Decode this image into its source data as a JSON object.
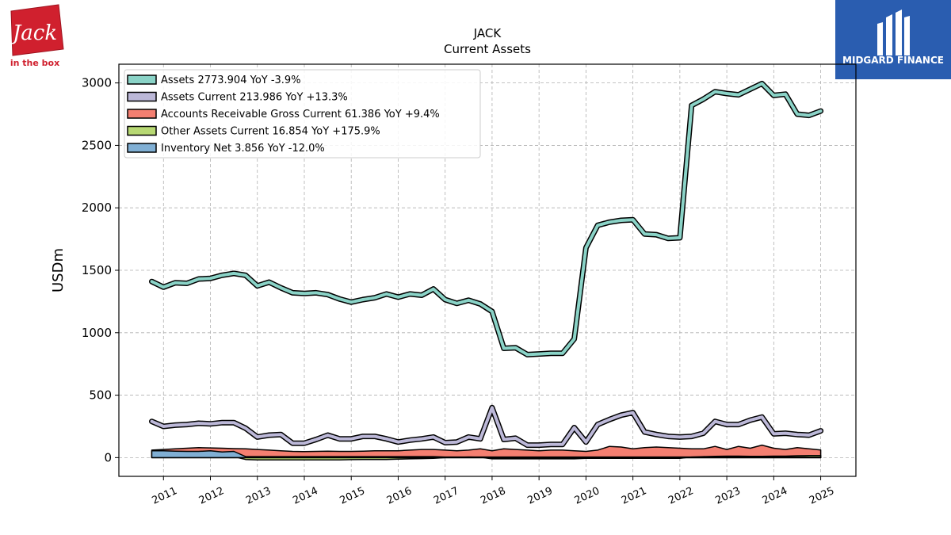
{
  "logo_left": {
    "brand": "Jack",
    "tagline": "in the box",
    "color": "#d0202e"
  },
  "logo_right": {
    "name": "MIDGARD FINANCE",
    "color": "#2a5db0"
  },
  "chart_data": {
    "type": "line",
    "title": "JACK",
    "subtitle": "Current  Assets",
    "ylabel": "USDm",
    "xlabel": "",
    "ylim": [
      -150,
      3150
    ],
    "xlim": [
      2010.05,
      2025.75
    ],
    "grid": true,
    "legend_position": "top-left",
    "yticks": [
      0,
      500,
      1000,
      1500,
      2000,
      2500,
      3000
    ],
    "xticks": [
      2011,
      2012,
      2013,
      2014,
      2015,
      2016,
      2017,
      2018,
      2019,
      2020,
      2021,
      2022,
      2023,
      2024,
      2025
    ],
    "series": [
      {
        "name": "Assets",
        "legend": "Assets  2773.904 YoY -3.9%",
        "color": "#8ad3c7",
        "fill": false,
        "x": [
          2010.75,
          2011.0,
          2011.25,
          2011.5,
          2011.75,
          2012.0,
          2012.25,
          2012.5,
          2012.75,
          2013.0,
          2013.25,
          2013.5,
          2013.75,
          2014.0,
          2014.25,
          2014.5,
          2014.75,
          2015.0,
          2015.25,
          2015.5,
          2015.75,
          2016.0,
          2016.25,
          2016.5,
          2016.75,
          2017.0,
          2017.25,
          2017.5,
          2017.75,
          2018.0,
          2018.25,
          2018.5,
          2018.75,
          2019.0,
          2019.25,
          2019.5,
          2019.75,
          2020.0,
          2020.25,
          2020.5,
          2020.75,
          2021.0,
          2021.25,
          2021.5,
          2021.75,
          2022.0,
          2022.25,
          2022.5,
          2022.75,
          2023.0,
          2023.25,
          2023.5,
          2023.75,
          2024.0,
          2024.25,
          2024.5,
          2024.75,
          2025.0
        ],
        "y": [
          1410,
          1365,
          1400,
          1395,
          1430,
          1435,
          1460,
          1475,
          1460,
          1375,
          1405,
          1360,
          1320,
          1315,
          1320,
          1305,
          1270,
          1245,
          1265,
          1280,
          1310,
          1285,
          1310,
          1300,
          1350,
          1265,
          1235,
          1260,
          1230,
          1170,
          875,
          880,
          825,
          830,
          835,
          835,
          950,
          1680,
          1860,
          1885,
          1900,
          1905,
          1790,
          1785,
          1755,
          1760,
          2820,
          2870,
          2930,
          2915,
          2905,
          2950,
          2995,
          2900,
          2910,
          2750,
          2740,
          2775
        ]
      },
      {
        "name": "Assets Current",
        "legend": "Assets Current  213.986 YoY +13.3%",
        "color": "#bcb8d8",
        "fill": false,
        "x": [
          2010.75,
          2011.0,
          2011.25,
          2011.5,
          2011.75,
          2012.0,
          2012.25,
          2012.5,
          2012.75,
          2013.0,
          2013.25,
          2013.5,
          2013.75,
          2014.0,
          2014.25,
          2014.5,
          2014.75,
          2015.0,
          2015.25,
          2015.5,
          2015.75,
          2016.0,
          2016.25,
          2016.5,
          2016.75,
          2017.0,
          2017.25,
          2017.5,
          2017.75,
          2018.0,
          2018.25,
          2018.5,
          2018.75,
          2019.0,
          2019.25,
          2019.5,
          2019.75,
          2020.0,
          2020.25,
          2020.5,
          2020.75,
          2021.0,
          2021.25,
          2021.5,
          2021.75,
          2022.0,
          2022.25,
          2022.5,
          2022.75,
          2023.0,
          2023.25,
          2023.5,
          2023.75,
          2024.0,
          2024.25,
          2024.5,
          2024.75,
          2025.0
        ],
        "y": [
          290,
          250,
          260,
          265,
          275,
          270,
          280,
          280,
          235,
          165,
          180,
          185,
          115,
          115,
          145,
          180,
          150,
          150,
          170,
          170,
          150,
          125,
          140,
          150,
          165,
          120,
          125,
          165,
          150,
          400,
          145,
          155,
          100,
          100,
          105,
          105,
          240,
          125,
          265,
          305,
          340,
          360,
          205,
          185,
          170,
          165,
          170,
          195,
          290,
          265,
          265,
          300,
          325,
          190,
          195,
          185,
          180,
          214
        ]
      },
      {
        "name": "Accounts Receivable Gross Current",
        "legend": "Accounts Receivable Gross Current  61.386 YoY +9.4%",
        "color": "#f47f71",
        "fill": true,
        "x": [
          2010.75,
          2011.0,
          2011.25,
          2011.5,
          2011.75,
          2012.0,
          2012.25,
          2012.5,
          2012.75,
          2013.0,
          2013.25,
          2013.5,
          2013.75,
          2014.0,
          2014.25,
          2014.5,
          2014.75,
          2015.0,
          2015.25,
          2015.5,
          2015.75,
          2016.0,
          2016.25,
          2016.5,
          2016.75,
          2017.0,
          2017.25,
          2017.5,
          2017.75,
          2018.0,
          2018.25,
          2018.5,
          2018.75,
          2019.0,
          2019.25,
          2019.5,
          2019.75,
          2020.0,
          2020.25,
          2020.5,
          2020.75,
          2021.0,
          2021.25,
          2021.5,
          2021.75,
          2022.0,
          2022.25,
          2022.5,
          2022.75,
          2023.0,
          2023.25,
          2023.5,
          2023.75,
          2024.0,
          2024.25,
          2024.5,
          2024.75,
          2025.0
        ],
        "y": [
          60,
          65,
          70,
          75,
          80,
          78,
          75,
          72,
          70,
          65,
          60,
          55,
          50,
          48,
          50,
          52,
          50,
          50,
          52,
          55,
          55,
          55,
          60,
          65,
          65,
          60,
          55,
          60,
          70,
          55,
          70,
          65,
          60,
          55,
          60,
          60,
          55,
          50,
          60,
          90,
          85,
          70,
          80,
          85,
          80,
          75,
          70,
          70,
          90,
          65,
          90,
          75,
          100,
          75,
          65,
          80,
          70,
          61
        ]
      },
      {
        "name": "Other Assets Current",
        "legend": "Other Assets Current  16.854 YoY +175.9%",
        "color": "#b7d873",
        "fill": true,
        "x": [
          2010.75,
          2011.0,
          2011.25,
          2011.5,
          2011.75,
          2012.0,
          2012.25,
          2012.5,
          2012.75,
          2013.0,
          2013.25,
          2013.5,
          2013.75,
          2014.0,
          2014.25,
          2014.5,
          2014.75,
          2015.0,
          2015.25,
          2015.5,
          2015.75,
          2016.0,
          2016.25,
          2016.5,
          2016.75,
          2017.0,
          2017.25,
          2017.5,
          2017.75,
          2018.0,
          2018.25,
          2018.5,
          2018.75,
          2019.0,
          2019.25,
          2019.5,
          2019.75,
          2020.0,
          2020.25,
          2020.5,
          2020.75,
          2021.0,
          2021.25,
          2021.5,
          2021.75,
          2022.0,
          2022.25,
          2022.5,
          2022.75,
          2023.0,
          2023.25,
          2023.5,
          2023.75,
          2024.0,
          2024.25,
          2024.5,
          2024.75,
          2025.0
        ],
        "y": [
          5,
          5,
          8,
          10,
          12,
          15,
          10,
          8,
          -15,
          -18,
          -18,
          -18,
          -18,
          -18,
          -18,
          -18,
          -18,
          -16,
          -15,
          -15,
          -15,
          -12,
          -10,
          -8,
          -5,
          0,
          2,
          5,
          3,
          -10,
          -10,
          -10,
          -10,
          -10,
          -10,
          -10,
          -10,
          -5,
          -5,
          -5,
          -5,
          -5,
          -5,
          -5,
          -5,
          -5,
          5,
          8,
          10,
          12,
          12,
          10,
          10,
          12,
          12,
          15,
          16,
          17
        ]
      },
      {
        "name": "Inventory Net",
        "legend": "Inventory Net  3.856 YoY -12.0%",
        "color": "#80afd4",
        "fill": true,
        "x": [
          2010.75,
          2011.0,
          2011.25,
          2011.5,
          2011.75,
          2012.0,
          2012.25,
          2012.5,
          2012.75,
          2013.0,
          2013.25,
          2013.5,
          2013.75,
          2014.0,
          2014.25,
          2014.5,
          2014.75,
          2015.0,
          2015.25,
          2015.5,
          2015.75,
          2016.0,
          2016.25,
          2016.5,
          2016.75,
          2017.0,
          2017.25,
          2017.5,
          2017.75,
          2018.0,
          2018.25,
          2018.5,
          2018.75,
          2019.0,
          2019.25,
          2019.5,
          2019.75,
          2020.0,
          2020.25,
          2020.5,
          2020.75,
          2021.0,
          2021.25,
          2021.5,
          2021.75,
          2022.0,
          2022.25,
          2022.5,
          2022.75,
          2023.0,
          2023.25,
          2023.5,
          2023.75,
          2024.0,
          2024.25,
          2024.5,
          2024.75,
          2025.0
        ],
        "y": [
          55,
          55,
          52,
          50,
          50,
          55,
          45,
          50,
          8,
          8,
          8,
          8,
          8,
          8,
          8,
          8,
          8,
          8,
          8,
          8,
          8,
          8,
          8,
          8,
          8,
          5,
          5,
          5,
          5,
          5,
          5,
          5,
          5,
          5,
          5,
          5,
          5,
          5,
          5,
          5,
          5,
          5,
          5,
          5,
          5,
          5,
          5,
          5,
          5,
          5,
          5,
          5,
          5,
          5,
          5,
          5,
          4,
          3.856
        ]
      }
    ]
  }
}
